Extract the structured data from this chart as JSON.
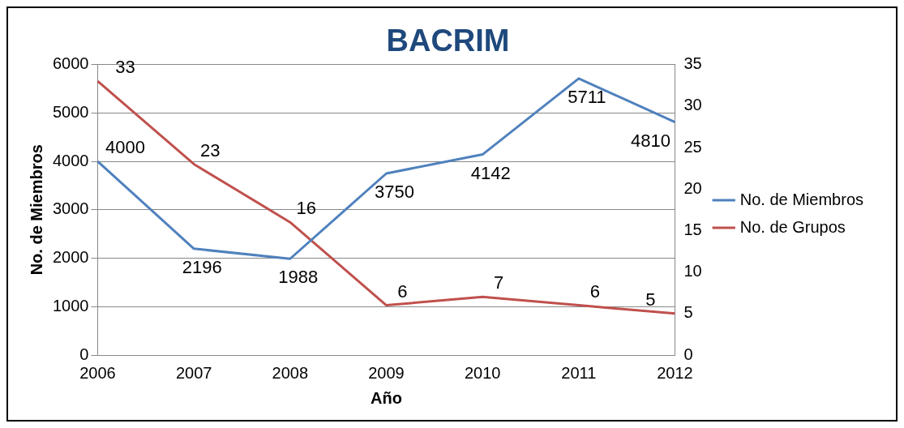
{
  "chart_data": {
    "type": "line",
    "title": "BACRIM",
    "xlabel": "Año",
    "ylabel": "No. de Miembros",
    "categories": [
      "2006",
      "2007",
      "2008",
      "2009",
      "2010",
      "2011",
      "2012"
    ],
    "series": [
      {
        "name": "No. de Miembros",
        "color": "#4f81bd",
        "values": [
          4000,
          2196,
          1988,
          3750,
          4142,
          5711,
          4810
        ]
      },
      {
        "name": "No. de Grupos",
        "color": "#c0504d",
        "values": [
          33,
          23,
          16,
          6,
          7,
          6,
          5
        ],
        "axis": "y2"
      }
    ],
    "ylim": [
      0,
      6000
    ],
    "yticks": [
      0,
      1000,
      2000,
      3000,
      4000,
      5000,
      6000
    ],
    "y2lim": [
      0,
      35
    ],
    "y2ticks": [
      0,
      5,
      10,
      15,
      20,
      25,
      30,
      35
    ],
    "grid": "y",
    "legend": "right",
    "marker": "none",
    "data_labels": true
  }
}
